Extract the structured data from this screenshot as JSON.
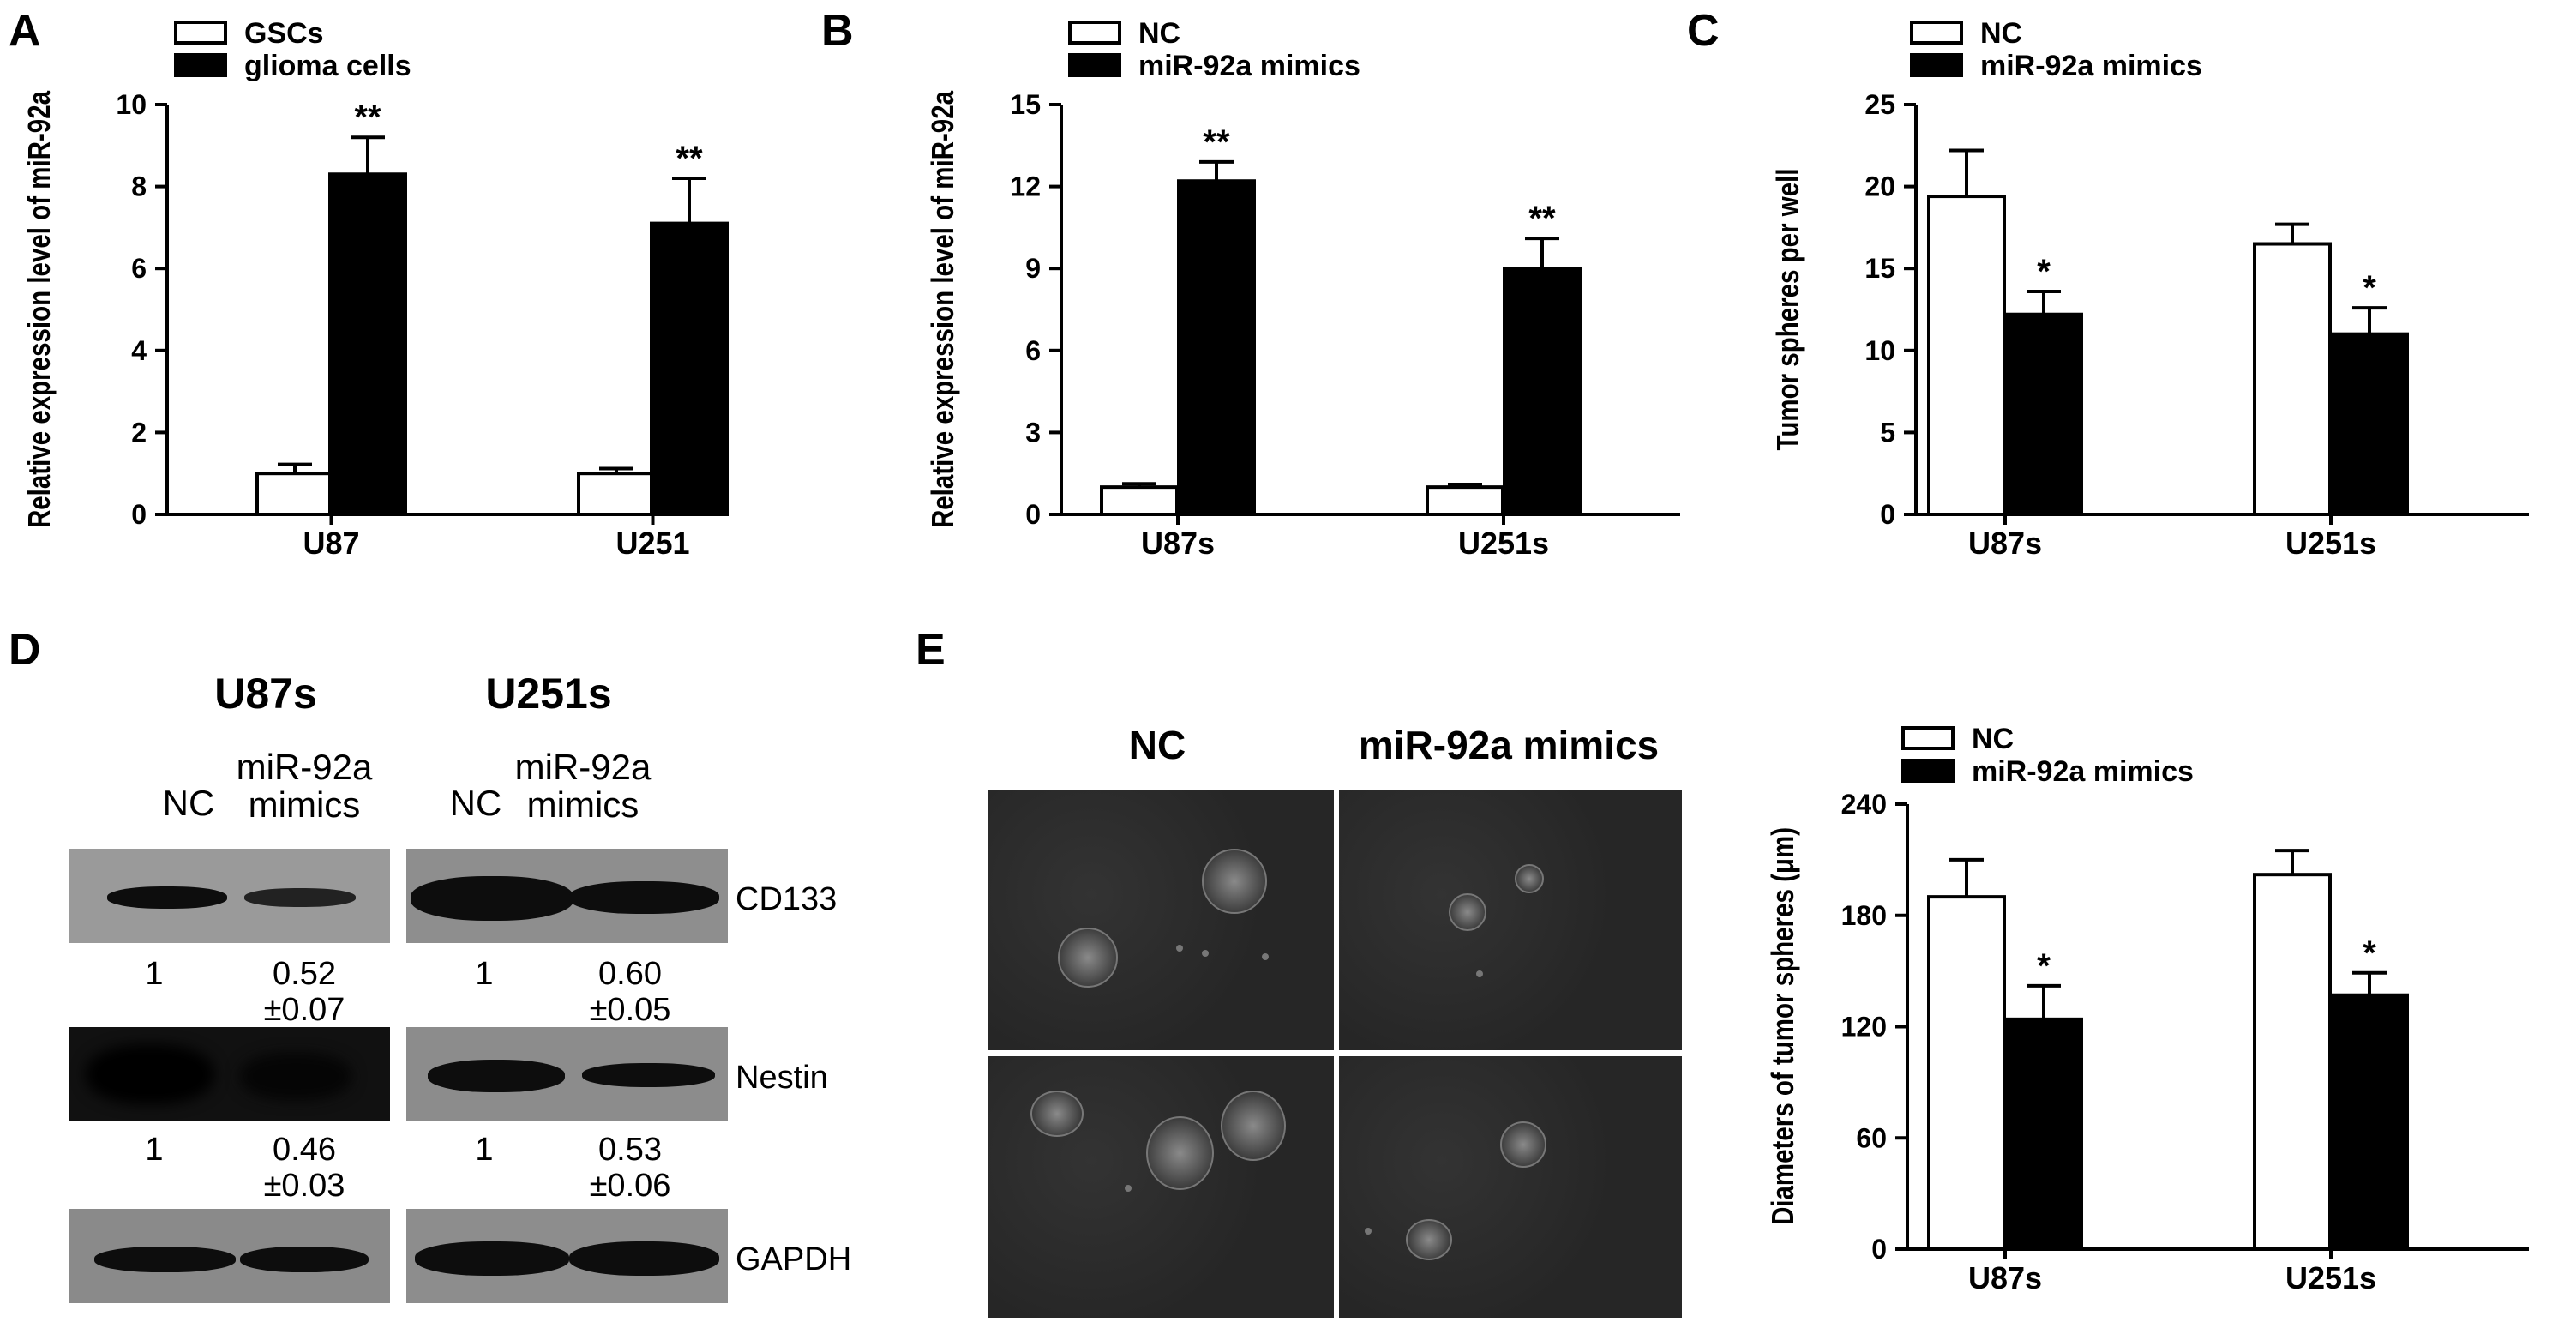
{
  "panels": {
    "A": "A",
    "B": "B",
    "C": "C",
    "D": "D",
    "E": "E"
  },
  "chart_data": [
    {
      "id": "A",
      "type": "bar",
      "categories": [
        "U87",
        "U251"
      ],
      "series": [
        {
          "name": "GSCs",
          "values": [
            1.0,
            1.0
          ],
          "errors": [
            0.22,
            0.12
          ],
          "fill": "#ffffff"
        },
        {
          "name": "glioma cells",
          "values": [
            8.3,
            7.1
          ],
          "errors": [
            0.9,
            1.1
          ],
          "fill": "#000000"
        }
      ],
      "significance": [
        "**",
        "**"
      ],
      "ylabel": "Relative expression level of miR-92a",
      "xlabel": "",
      "ylim": [
        0,
        10
      ],
      "yticks": [
        0,
        2,
        4,
        6,
        8,
        10
      ],
      "legend": "top-left"
    },
    {
      "id": "B",
      "type": "bar",
      "categories": [
        "U87s",
        "U251s"
      ],
      "series": [
        {
          "name": "NC",
          "values": [
            1.0,
            1.0
          ],
          "errors": [
            0.12,
            0.1
          ],
          "fill": "#ffffff"
        },
        {
          "name": "miR-92a mimics",
          "values": [
            12.2,
            9.0
          ],
          "errors": [
            0.7,
            1.1
          ],
          "fill": "#000000"
        }
      ],
      "significance": [
        "**",
        "**"
      ],
      "ylabel": "Relative expression level of miR-92a",
      "xlabel": "",
      "ylim": [
        0,
        15
      ],
      "yticks": [
        0,
        3,
        6,
        9,
        12,
        15
      ],
      "legend": "top-left"
    },
    {
      "id": "C",
      "type": "bar",
      "categories": [
        "U87s",
        "U251s"
      ],
      "series": [
        {
          "name": "NC",
          "values": [
            19.4,
            16.5
          ],
          "errors": [
            2.8,
            1.2
          ],
          "fill": "#ffffff"
        },
        {
          "name": "miR-92a mimics",
          "values": [
            12.2,
            11.0
          ],
          "errors": [
            1.4,
            1.6
          ],
          "fill": "#000000"
        }
      ],
      "significance": [
        "*",
        "*"
      ],
      "ylabel": "Tumor spheres per well",
      "xlabel": "",
      "ylim": [
        0,
        25
      ],
      "yticks": [
        0,
        5,
        10,
        15,
        20,
        25
      ],
      "legend": "top-left"
    },
    {
      "id": "E",
      "type": "bar",
      "categories": [
        "U87s",
        "U251s"
      ],
      "series": [
        {
          "name": "NC",
          "values": [
            190,
            202
          ],
          "errors": [
            20,
            13
          ],
          "fill": "#ffffff"
        },
        {
          "name": "miR-92a mimics",
          "values": [
            124,
            137
          ],
          "errors": [
            18,
            12
          ],
          "fill": "#000000"
        }
      ],
      "significance": [
        "*",
        "*"
      ],
      "ylabel": "Diameters of tumor spheres (μm)",
      "xlabel": "",
      "ylim": [
        0,
        240
      ],
      "yticks": [
        0,
        60,
        120,
        180,
        240
      ],
      "legend": "top-left"
    }
  ],
  "western_blot": {
    "groups": [
      {
        "title": "U87s",
        "lanes": [
          "NC",
          "miR-92a\nmimics"
        ]
      },
      {
        "title": "U251s",
        "lanes": [
          "NC",
          "miR-92a\nmimics"
        ]
      }
    ],
    "proteins": [
      "CD133",
      "Nestin",
      "GAPDH"
    ],
    "quant": {
      "CD133": [
        [
          "1",
          "0.52\n±0.07"
        ],
        [
          "1",
          "0.60\n±0.05"
        ]
      ],
      "Nestin": [
        [
          "1",
          "0.46\n±0.03"
        ],
        [
          "1",
          "0.53\n±0.06"
        ]
      ]
    }
  },
  "micrographs": {
    "columns": [
      "NC",
      "miR-92a mimics"
    ]
  }
}
